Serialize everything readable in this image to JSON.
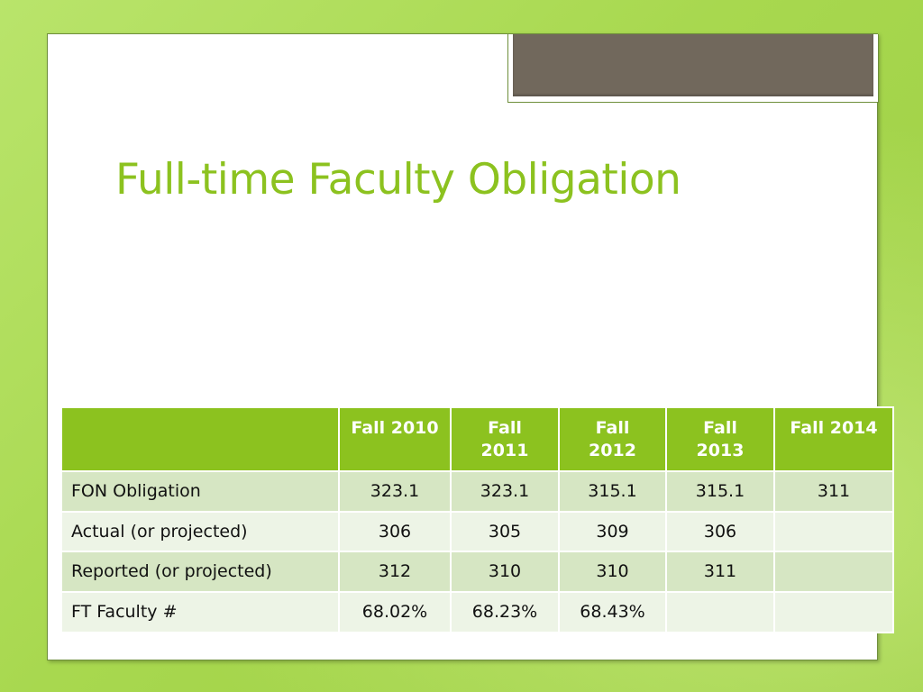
{
  "slide": {
    "title": "Full-time Faculty Obligation"
  },
  "table": {
    "columns": [
      "",
      "Fall 2010",
      "Fall\n2011",
      "Fall\n2012",
      "Fall\n2013",
      "Fall 2014"
    ],
    "rows": [
      [
        "FON Obligation",
        "323.1",
        "323.1",
        "315.1",
        "315.1",
        "311"
      ],
      [
        "Actual (or projected)",
        "306",
        "305",
        "309",
        "306",
        ""
      ],
      [
        "Reported (or projected)",
        "312",
        "310",
        "310",
        "311",
        ""
      ],
      [
        "FT Faculty #",
        "68.02%",
        "68.23%",
        "68.43%",
        "",
        ""
      ]
    ]
  },
  "colors": {
    "accent": "#8cc21f",
    "row_band_dark": "#d6e6c3",
    "row_band_light": "#edf4e6",
    "tab": "#71685c"
  }
}
